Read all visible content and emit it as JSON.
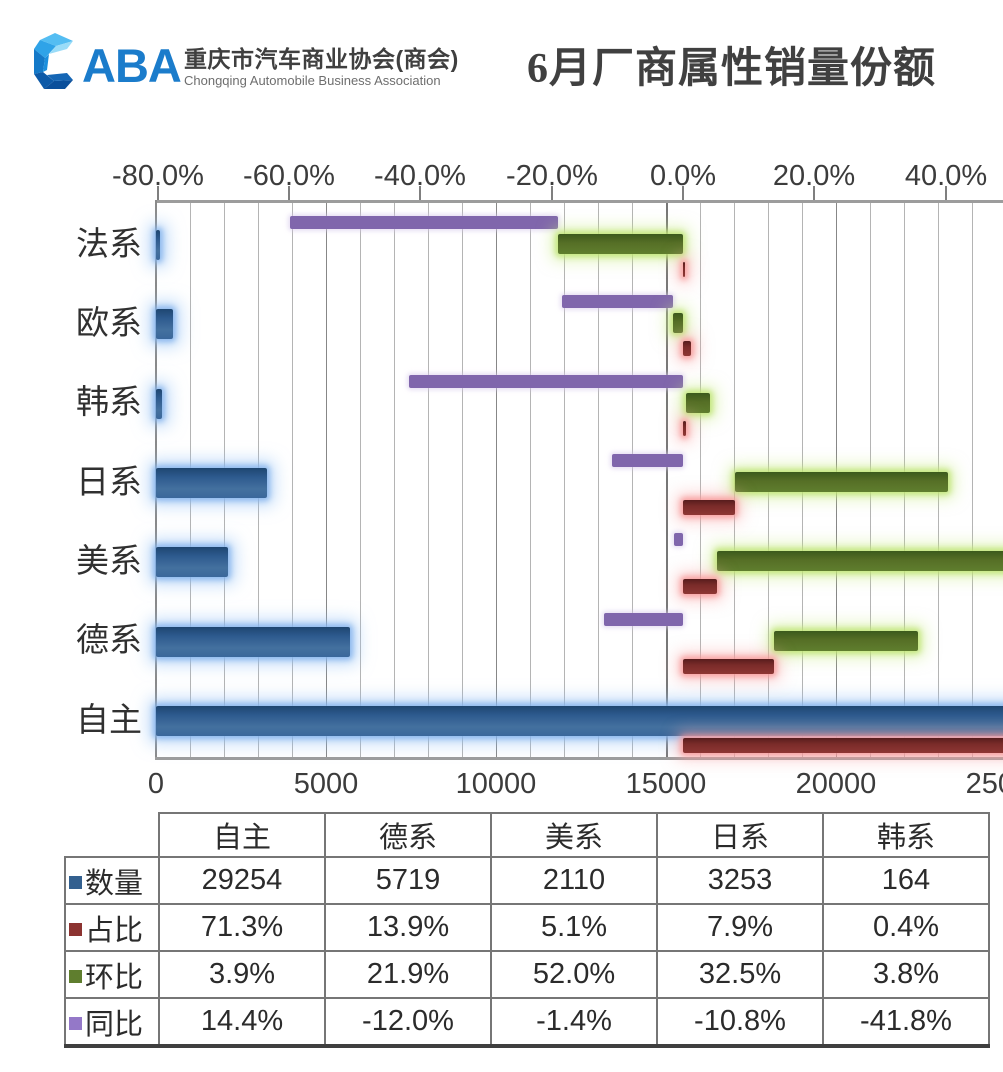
{
  "branding": {
    "logotype": "ABA",
    "org_cn": "重庆市汽车商业协会(商会)",
    "org_en": "Chongqing Automobile Business Association"
  },
  "header": {
    "title": "6月厂商属性销量份额"
  },
  "colors": {
    "accent_blue": "#1b7ccb",
    "series_qty": "#33608f",
    "series_share": "#8c3331",
    "series_mom": "#5f7e2e",
    "series_yoy": "#8066ac",
    "glow_qty": "#82b2eb",
    "glow_share": "#f79696",
    "glow_mom": "#bee473",
    "glow_yoy": "#d5c8eb"
  },
  "chart_data": {
    "type": "bar",
    "orientation": "horizontal",
    "title": "6月厂商属性销量份额",
    "grid": true,
    "categories_top_to_bottom": [
      "法系",
      "欧系",
      "韩系",
      "日系",
      "美系",
      "德系",
      "自主"
    ],
    "top_axis": {
      "unit": "%",
      "tick_labels": [
        "-80.0%",
        "-60.0%",
        "-40.0%",
        "-20.0%",
        "0.0%",
        "20.0%",
        "40.0%"
      ],
      "tick_values": [
        -80,
        -60,
        -40,
        -20,
        0,
        20,
        40
      ],
      "visible_range": [
        -80,
        48.8
      ]
    },
    "bottom_axis": {
      "unit": "vehicles",
      "tick_labels": [
        "0",
        "5000",
        "10000",
        "15000",
        "20000",
        "25000"
      ],
      "tick_values": [
        0,
        5000,
        10000,
        15000,
        20000,
        25000
      ],
      "minor_grid_step": 1000,
      "visible_range": [
        0,
        24900
      ]
    },
    "series": [
      {
        "name": "数量",
        "axis": "bottom",
        "color": "#33608f",
        "values": [
          120,
          490,
          164,
          3253,
          2110,
          5719,
          29254
        ]
      },
      {
        "name": "占比",
        "axis": "top",
        "color": "#8c3331",
        "values": [
          0.2,
          1.2,
          0.4,
          7.9,
          5.1,
          13.9,
          71.3
        ]
      },
      {
        "name": "环比",
        "axis": "top",
        "color": "#5f7e2e",
        "values": [
          -19.0,
          -1.5,
          3.8,
          32.5,
          52.0,
          21.9,
          3.9
        ]
      },
      {
        "name": "同比",
        "axis": "top",
        "color": "#8066ac",
        "values": [
          -40.8,
          -16.9,
          -41.8,
          -10.8,
          -1.4,
          -12.0,
          14.4
        ]
      }
    ],
    "stacking": "占比/环比/同比 stack from 0 on the top percent axis; negatives stack leftward"
  },
  "table": {
    "columns": [
      "自主",
      "德系",
      "美系",
      "日系",
      "韩系"
    ],
    "rows": [
      {
        "label": "数量",
        "color": "#33608f",
        "values": [
          "29254",
          "5719",
          "2110",
          "3253",
          "164"
        ]
      },
      {
        "label": "占比",
        "color": "#8c3331",
        "values": [
          "71.3%",
          "13.9%",
          "5.1%",
          "7.9%",
          "0.4%"
        ]
      },
      {
        "label": "环比",
        "color": "#5f7e2e",
        "values": [
          "3.9%",
          "21.9%",
          "52.0%",
          "32.5%",
          "3.8%"
        ]
      },
      {
        "label": "同比",
        "color": "#9478c8",
        "values": [
          "14.4%",
          "-12.0%",
          "-1.4%",
          "-10.8%",
          "-41.8%"
        ]
      }
    ]
  }
}
